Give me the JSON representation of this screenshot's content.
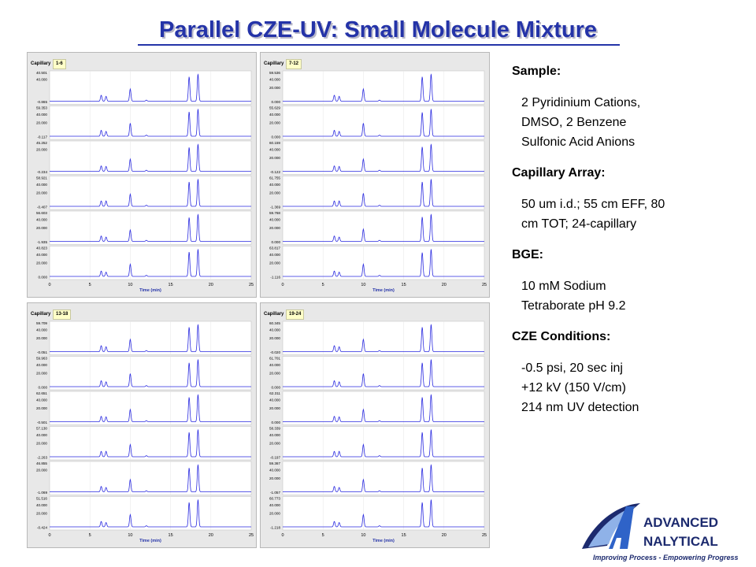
{
  "slide": {
    "title": "Parallel CZE-UV: Small Molecule Mixture"
  },
  "info": {
    "sections": [
      {
        "heading": "Sample:",
        "lines": [
          "2 Pyridinium Cations,",
          "DMSO, 2 Benzene",
          "Sulfonic Acid Anions"
        ]
      },
      {
        "heading": "Capillary Array:",
        "lines": [
          "50 um i.d.; 55 cm EFF, 80",
          "cm TOT; 24-capillary"
        ]
      },
      {
        "heading": "BGE:",
        "lines": [
          "10 mM Sodium",
          "Tetraborate pH 9.2"
        ]
      },
      {
        "heading": "CZE Conditions:",
        "lines": [
          "-0.5 psi, 20 sec inj",
          "+12 kV (150 V/cm)",
          "214 nm UV detection"
        ]
      }
    ]
  },
  "logo": {
    "line1": "ADVANCED",
    "line2": "NALYTICAL",
    "tagline": "Improving Process - Empowering Progress",
    "colors": {
      "navy": "#1c2a6e",
      "blue": "#2f63c8",
      "light": "#8fb2e8"
    }
  },
  "colors": {
    "title": "#2433a8",
    "trace": "#2a2ae0",
    "panel_bg": "#e8e8e8",
    "plot_bg": "#ffffff"
  },
  "chart_data": [
    {
      "type": "line",
      "capillary_label": "Capillary",
      "capillary_range": "1-6",
      "xlabel": "Time (min)",
      "xlim": [
        0,
        25
      ],
      "x_ticks": [
        "0",
        "5",
        "10",
        "15",
        "20",
        "25"
      ],
      "peaks_min": [
        6.4,
        7.0,
        10.0,
        12.0,
        17.3,
        18.4
      ],
      "traces": [
        {
          "ymax": "40.501",
          "yticks": [
            "40.000",
            "-0.865"
          ],
          "heights": [
            0.22,
            0.18,
            0.45,
            0.04,
            0.9,
            1.0
          ]
        },
        {
          "ymax": "59.353",
          "yticks": [
            "40.000",
            "20.000",
            "-0.117"
          ],
          "heights": [
            0.22,
            0.18,
            0.48,
            0.04,
            0.9,
            1.0
          ]
        },
        {
          "ymax": "45.252",
          "yticks": [
            "20.000",
            "-0.234"
          ],
          "heights": [
            0.2,
            0.18,
            0.45,
            0.04,
            0.88,
            1.0
          ]
        },
        {
          "ymax": "58.921",
          "yticks": [
            "40.000",
            "20.000",
            "-0.407"
          ],
          "heights": [
            0.2,
            0.2,
            0.45,
            0.04,
            0.9,
            1.0
          ]
        },
        {
          "ymax": "56.603",
          "yticks": [
            "40.000",
            "20.000",
            "-1.935"
          ],
          "heights": [
            0.2,
            0.16,
            0.42,
            0.04,
            0.88,
            1.0
          ]
        },
        {
          "ymax": "40.823",
          "yticks": [
            "40.000",
            "20.000",
            "0.000"
          ],
          "heights": [
            0.2,
            0.16,
            0.45,
            0.04,
            0.9,
            1.0
          ]
        }
      ]
    },
    {
      "type": "line",
      "capillary_label": "Capillary",
      "capillary_range": "7-12",
      "xlabel": "Time (min)",
      "xlim": [
        0,
        25
      ],
      "x_ticks": [
        "0",
        "5",
        "10",
        "15",
        "20",
        "25"
      ],
      "peaks_min": [
        6.4,
        7.0,
        10.0,
        12.0,
        17.3,
        18.4
      ],
      "traces": [
        {
          "ymax": "59.536",
          "yticks": [
            "40.000",
            "20.000",
            "0.000"
          ],
          "heights": [
            0.22,
            0.18,
            0.45,
            0.04,
            0.9,
            1.0
          ]
        },
        {
          "ymax": "55.629",
          "yticks": [
            "40.000",
            "20.000",
            "0.000"
          ],
          "heights": [
            0.22,
            0.18,
            0.48,
            0.04,
            0.88,
            1.0
          ]
        },
        {
          "ymax": "60.159",
          "yticks": [
            "40.000",
            "20.000",
            "-0.122"
          ],
          "heights": [
            0.2,
            0.18,
            0.45,
            0.04,
            0.9,
            1.0
          ]
        },
        {
          "ymax": "61.755",
          "yticks": [
            "40.000",
            "20.000",
            "-1.369"
          ],
          "heights": [
            0.2,
            0.2,
            0.48,
            0.04,
            0.9,
            1.0
          ]
        },
        {
          "ymax": "59.768",
          "yticks": [
            "40.000",
            "20.000",
            "0.000"
          ],
          "heights": [
            0.2,
            0.16,
            0.45,
            0.04,
            0.9,
            1.0
          ]
        },
        {
          "ymax": "63.817",
          "yticks": [
            "40.000",
            "20.000",
            "-1.116"
          ],
          "heights": [
            0.2,
            0.16,
            0.45,
            0.04,
            0.88,
            1.0
          ]
        }
      ]
    },
    {
      "type": "line",
      "capillary_label": "Capillary",
      "capillary_range": "13-18",
      "xlabel": "Time (min)",
      "xlim": [
        0,
        25
      ],
      "x_ticks": [
        "0",
        "5",
        "10",
        "15",
        "20",
        "25"
      ],
      "peaks_min": [
        6.4,
        7.0,
        10.0,
        12.0,
        17.3,
        18.4
      ],
      "traces": [
        {
          "ymax": "59.709",
          "yticks": [
            "40.000",
            "20.000",
            "-0.051"
          ],
          "heights": [
            0.22,
            0.18,
            0.45,
            0.04,
            0.9,
            1.0
          ]
        },
        {
          "ymax": "59.963",
          "yticks": [
            "40.000",
            "20.000",
            "0.000"
          ],
          "heights": [
            0.22,
            0.18,
            0.48,
            0.04,
            0.88,
            1.0
          ]
        },
        {
          "ymax": "62.651",
          "yticks": [
            "40.000",
            "20.000",
            "-0.501"
          ],
          "heights": [
            0.2,
            0.18,
            0.45,
            0.04,
            0.9,
            1.0
          ]
        },
        {
          "ymax": "57.130",
          "yticks": [
            "40.000",
            "20.000",
            "-2.263"
          ],
          "heights": [
            0.2,
            0.2,
            0.45,
            0.04,
            0.9,
            1.0
          ]
        },
        {
          "ymax": "46.855",
          "yticks": [
            "20.000",
            "-1.069"
          ],
          "heights": [
            0.2,
            0.16,
            0.45,
            0.04,
            0.88,
            1.0
          ]
        },
        {
          "ymax": "51.516",
          "yticks": [
            "40.000",
            "20.000",
            "-0.424"
          ],
          "heights": [
            0.2,
            0.16,
            0.45,
            0.04,
            0.9,
            1.0
          ]
        }
      ]
    },
    {
      "type": "line",
      "capillary_label": "Capillary",
      "capillary_range": "19-24",
      "xlabel": "Time (min)",
      "xlim": [
        0,
        25
      ],
      "x_ticks": [
        "0",
        "5",
        "10",
        "15",
        "20",
        "25"
      ],
      "peaks_min": [
        6.4,
        7.0,
        10.0,
        12.0,
        17.3,
        18.4
      ],
      "traces": [
        {
          "ymax": "60.345",
          "yticks": [
            "40.000",
            "20.000",
            "-0.020"
          ],
          "heights": [
            0.22,
            0.18,
            0.45,
            0.04,
            0.9,
            1.0
          ]
        },
        {
          "ymax": "61.701",
          "yticks": [
            "40.000",
            "20.000",
            "0.000"
          ],
          "heights": [
            0.22,
            0.18,
            0.48,
            0.04,
            0.88,
            1.0
          ]
        },
        {
          "ymax": "62.311",
          "yticks": [
            "40.000",
            "20.000",
            "0.000"
          ],
          "heights": [
            0.2,
            0.18,
            0.45,
            0.04,
            0.9,
            1.0
          ]
        },
        {
          "ymax": "58.339",
          "yticks": [
            "40.000",
            "20.000",
            "-0.197"
          ],
          "heights": [
            0.2,
            0.2,
            0.45,
            0.04,
            0.9,
            1.0
          ]
        },
        {
          "ymax": "59.367",
          "yticks": [
            "40.000",
            "20.000",
            "-1.057"
          ],
          "heights": [
            0.2,
            0.16,
            0.45,
            0.04,
            0.88,
            1.0
          ]
        },
        {
          "ymax": "60.773",
          "yticks": [
            "40.000",
            "20.000",
            "-1.218"
          ],
          "heights": [
            0.2,
            0.16,
            0.45,
            0.04,
            0.9,
            1.0
          ]
        }
      ]
    }
  ]
}
